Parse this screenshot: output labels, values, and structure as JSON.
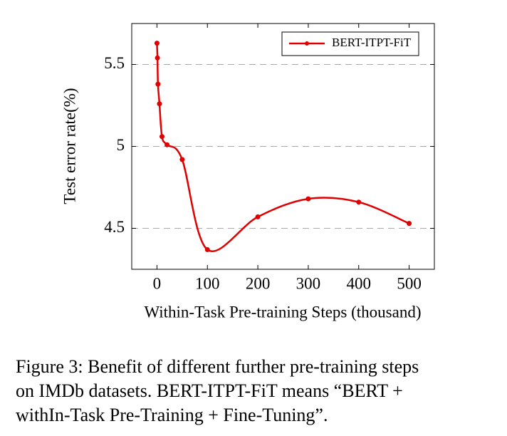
{
  "chart_data": {
    "type": "line",
    "x": [
      0,
      1,
      2,
      5,
      10,
      20,
      50,
      100,
      200,
      300,
      400,
      500
    ],
    "series": [
      {
        "name": "BERT-ITPT-FiT",
        "color": "#e00000",
        "values": [
          5.63,
          5.54,
          5.38,
          5.26,
          5.06,
          5.01,
          4.92,
          4.37,
          4.57,
          4.68,
          4.66,
          4.53
        ]
      }
    ],
    "xlim": [
      -50,
      550
    ],
    "ylim": [
      4.25,
      5.75
    ],
    "xticks": [
      0,
      100,
      200,
      300,
      400,
      500
    ],
    "yticks": [
      4.5,
      5,
      5.5
    ],
    "grid": true,
    "legend": "upper right",
    "smooth": true,
    "xlabel": "Within-Task Pre-training Steps (thousand)",
    "ylabel": "Test error rate(%)",
    "caption": [
      "Figure 3: Benefit of different further pre-training steps",
      "on IMDb datasets.  BERT-ITPT-FiT means “BERT +",
      "withIn-Task Pre-Training + Fine-Tuning”."
    ]
  }
}
